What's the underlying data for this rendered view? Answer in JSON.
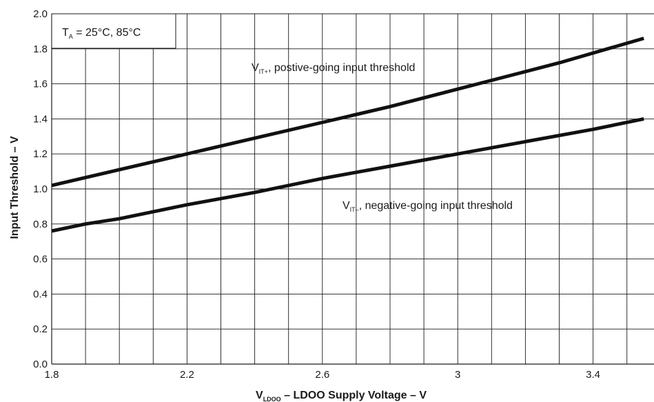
{
  "chart_data": {
    "type": "line",
    "xlabel": {
      "main": "V",
      "sub": "LDOO",
      "rest": " – LDOO Supply Voltage – V"
    },
    "ylabel": "Input Threshold – V",
    "xlim": [
      1.8,
      3.55
    ],
    "ylim": [
      0.0,
      2.0
    ],
    "x_ticks": [
      1.8,
      2.2,
      2.6,
      3.0,
      3.4
    ],
    "x_tick_labels": [
      "1.8",
      "2.2",
      "2.6",
      "3",
      "3.4"
    ],
    "y_ticks": [
      0.0,
      0.2,
      0.4,
      0.6,
      0.8,
      1.0,
      1.2,
      1.4,
      1.6,
      1.8,
      2.0
    ],
    "y_tick_labels": [
      "0.0",
      "0.2",
      "0.4",
      "0.6",
      "0.8",
      "1.0",
      "1.2",
      "1.4",
      "1.6",
      "1.8",
      "2.0"
    ],
    "x_grid_step": 0.1,
    "y_grid_step": 0.2,
    "grid": true,
    "legend_box": {
      "main": "T",
      "sub": "A",
      "rest": " = 25°C, 85°C"
    },
    "series": [
      {
        "name_main": "V",
        "name_sub": "IT+",
        "name_rest": ", postive-going input threshold",
        "x": [
          1.8,
          2.0,
          2.2,
          2.4,
          2.6,
          2.8,
          3.0,
          3.1,
          3.3,
          3.55
        ],
        "y": [
          1.02,
          1.11,
          1.2,
          1.29,
          1.38,
          1.47,
          1.57,
          1.62,
          1.72,
          1.86
        ],
        "color": "#111111"
      },
      {
        "name_main": "V",
        "name_sub": "IT–",
        "name_rest": ", negative-going input threshold",
        "x": [
          1.8,
          1.9,
          2.0,
          2.2,
          2.4,
          2.6,
          2.8,
          3.0,
          3.2,
          3.4,
          3.55
        ],
        "y": [
          0.76,
          0.8,
          0.83,
          0.91,
          0.98,
          1.06,
          1.13,
          1.2,
          1.27,
          1.34,
          1.4
        ],
        "color": "#111111"
      }
    ]
  }
}
